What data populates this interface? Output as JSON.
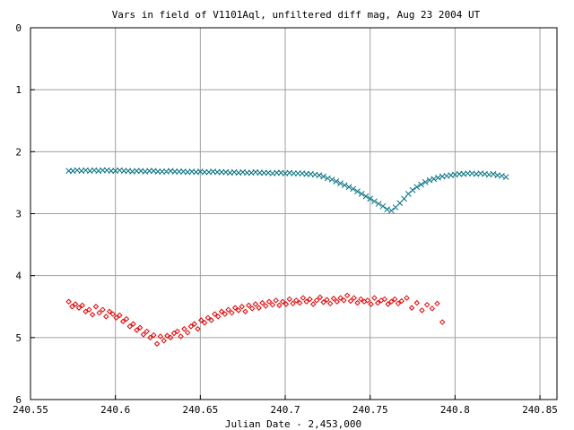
{
  "chart_data": {
    "type": "scatter",
    "title": "Vars in field of V1101Aql, unfiltered diff mag, Aug 23 2004 UT",
    "xlabel": "Julian Date - 2,453,000",
    "ylabel": "",
    "xlim": [
      240.55,
      240.86
    ],
    "ylim": [
      6,
      0
    ],
    "y_inverted": true,
    "grid": true,
    "x_ticks": [
      240.55,
      240.6,
      240.65,
      240.7,
      240.75,
      240.8,
      240.85
    ],
    "x_tick_labels": [
      "240.55",
      "240.6",
      "240.65",
      "240.7",
      "240.75",
      "240.8",
      "240.85"
    ],
    "y_ticks": [
      0,
      1,
      2,
      3,
      4,
      5,
      6
    ],
    "y_tick_labels": [
      "0",
      "1",
      "2",
      "3",
      "4",
      "5",
      "6"
    ],
    "series": [
      {
        "marker": "x",
        "color": "#007080",
        "x": [
          240.5725,
          240.575,
          240.5775,
          240.58,
          240.5825,
          240.585,
          240.5875,
          240.59,
          240.5925,
          240.595,
          240.5975,
          240.6,
          240.6025,
          240.605,
          240.6075,
          240.61,
          240.6125,
          240.615,
          240.6175,
          240.62,
          240.6225,
          240.625,
          240.6275,
          240.63,
          240.6325,
          240.635,
          240.6375,
          240.64,
          240.6425,
          240.645,
          240.6475,
          240.65,
          240.6525,
          240.655,
          240.6575,
          240.66,
          240.6625,
          240.665,
          240.6675,
          240.67,
          240.6725,
          240.675,
          240.6775,
          240.68,
          240.6825,
          240.685,
          240.6875,
          240.69,
          240.6925,
          240.695,
          240.6975,
          240.7,
          240.7025,
          240.705,
          240.7075,
          240.71,
          240.7125,
          240.715,
          240.7175,
          240.72,
          240.7225,
          240.725,
          240.7275,
          240.73,
          240.7325,
          240.735,
          240.7375,
          240.74,
          240.7425,
          240.745,
          240.7475,
          240.75,
          240.7525,
          240.755,
          240.7575,
          240.76,
          240.7625,
          240.765,
          240.7675,
          240.77,
          240.7725,
          240.775,
          240.7775,
          240.78,
          240.7825,
          240.785,
          240.7875,
          240.79,
          240.7925,
          240.795,
          240.7975,
          240.8,
          240.8025,
          240.805,
          240.8075,
          240.81,
          240.8125,
          240.815,
          240.8175,
          240.82,
          240.8225,
          240.825,
          240.8275,
          240.83
        ],
        "y": [
          2.31,
          2.31,
          2.3,
          2.31,
          2.3,
          2.31,
          2.3,
          2.31,
          2.3,
          2.3,
          2.31,
          2.31,
          2.3,
          2.31,
          2.31,
          2.32,
          2.31,
          2.31,
          2.32,
          2.31,
          2.31,
          2.32,
          2.32,
          2.32,
          2.31,
          2.32,
          2.32,
          2.32,
          2.33,
          2.32,
          2.33,
          2.32,
          2.33,
          2.33,
          2.32,
          2.33,
          2.33,
          2.33,
          2.34,
          2.33,
          2.34,
          2.33,
          2.34,
          2.34,
          2.33,
          2.34,
          2.34,
          2.34,
          2.35,
          2.34,
          2.34,
          2.35,
          2.34,
          2.35,
          2.35,
          2.35,
          2.36,
          2.36,
          2.37,
          2.38,
          2.4,
          2.43,
          2.45,
          2.48,
          2.51,
          2.54,
          2.57,
          2.6,
          2.64,
          2.68,
          2.72,
          2.76,
          2.8,
          2.84,
          2.88,
          2.93,
          2.95,
          2.9,
          2.83,
          2.76,
          2.68,
          2.62,
          2.57,
          2.53,
          2.49,
          2.46,
          2.44,
          2.42,
          2.4,
          2.39,
          2.38,
          2.37,
          2.36,
          2.36,
          2.35,
          2.35,
          2.36,
          2.35,
          2.36,
          2.37,
          2.36,
          2.38,
          2.39,
          2.41
        ]
      },
      {
        "marker": "diamond",
        "color": "#e00000",
        "x": [
          240.5725,
          240.5745,
          240.5765,
          240.5785,
          240.5805,
          240.5825,
          240.5845,
          240.5865,
          240.5885,
          240.5905,
          240.5925,
          240.5945,
          240.5965,
          240.5985,
          240.6005,
          240.6025,
          240.6045,
          240.6065,
          240.6085,
          240.6105,
          240.6125,
          240.6145,
          240.6165,
          240.6185,
          240.6205,
          240.6225,
          240.6245,
          240.6265,
          240.6285,
          240.6305,
          240.6325,
          240.6345,
          240.6365,
          240.6385,
          240.6405,
          240.6425,
          240.6445,
          240.6465,
          240.6485,
          240.6505,
          240.6525,
          240.6545,
          240.6565,
          240.6585,
          240.6605,
          240.6625,
          240.6645,
          240.6665,
          240.6685,
          240.6705,
          240.6725,
          240.6745,
          240.6765,
          240.6785,
          240.6805,
          240.6825,
          240.6845,
          240.6865,
          240.6885,
          240.6905,
          240.6925,
          240.6945,
          240.6965,
          240.6985,
          240.7005,
          240.7025,
          240.7045,
          240.7065,
          240.7085,
          240.7105,
          240.7125,
          240.7145,
          240.7165,
          240.7185,
          240.7205,
          240.7225,
          240.7245,
          240.7265,
          240.7285,
          240.7305,
          240.7325,
          240.7345,
          240.7365,
          240.7385,
          240.7405,
          240.7425,
          240.7445,
          240.7465,
          240.7485,
          240.7505,
          240.7525,
          240.7545,
          240.7565,
          240.7585,
          240.7605,
          240.7625,
          240.7645,
          240.7665,
          240.7685,
          240.7715,
          240.7745,
          240.7775,
          240.7805,
          240.7835,
          240.7865,
          240.7895,
          240.7925
        ],
        "y": [
          4.42,
          4.5,
          4.46,
          4.52,
          4.48,
          4.58,
          4.55,
          4.63,
          4.5,
          4.6,
          4.55,
          4.66,
          4.58,
          4.62,
          4.68,
          4.64,
          4.74,
          4.7,
          4.82,
          4.78,
          4.88,
          4.84,
          4.95,
          4.9,
          5.0,
          4.96,
          5.1,
          4.98,
          5.05,
          4.97,
          5.0,
          4.93,
          4.9,
          4.98,
          4.86,
          4.92,
          4.82,
          4.78,
          4.86,
          4.72,
          4.76,
          4.68,
          4.72,
          4.62,
          4.66,
          4.58,
          4.62,
          4.55,
          4.6,
          4.52,
          4.56,
          4.5,
          4.58,
          4.48,
          4.53,
          4.46,
          4.52,
          4.44,
          4.49,
          4.42,
          4.47,
          4.4,
          4.48,
          4.42,
          4.46,
          4.38,
          4.45,
          4.4,
          4.44,
          4.36,
          4.42,
          4.38,
          4.46,
          4.4,
          4.35,
          4.43,
          4.39,
          4.45,
          4.37,
          4.42,
          4.36,
          4.4,
          4.32,
          4.41,
          4.36,
          4.44,
          4.38,
          4.42,
          4.4,
          4.46,
          4.36,
          4.44,
          4.4,
          4.38,
          4.46,
          4.42,
          4.38,
          4.45,
          4.41,
          4.36,
          4.52,
          4.44,
          4.56,
          4.47,
          4.53,
          4.45,
          4.75
        ]
      }
    ]
  }
}
